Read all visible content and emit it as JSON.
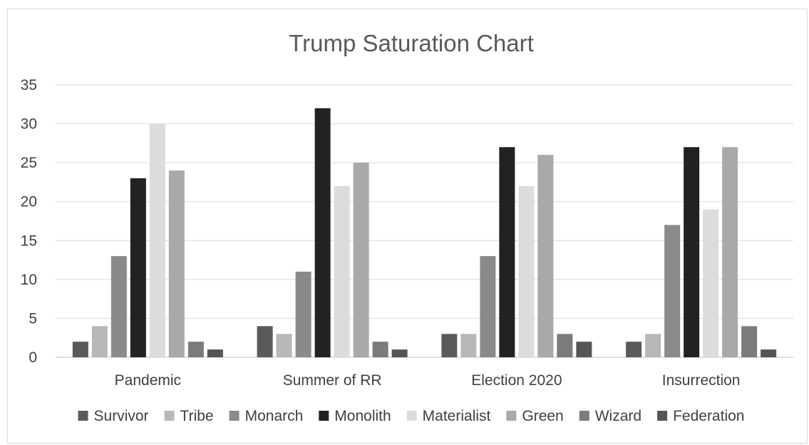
{
  "chart_data": {
    "type": "bar",
    "title": "Trump Saturation Chart",
    "xlabel": "",
    "ylabel": "",
    "ylim": [
      0,
      35
    ],
    "yticks": [
      0,
      5,
      10,
      15,
      20,
      25,
      30,
      35
    ],
    "grid": true,
    "legend_position": "bottom",
    "categories": [
      "Pandemic",
      "Summer of RR",
      "Election 2020",
      "Insurrection"
    ],
    "series": [
      {
        "name": "Survivor",
        "color": "#5a5a5a",
        "values": [
          2,
          4,
          3,
          2
        ]
      },
      {
        "name": "Tribe",
        "color": "#b8b8b8",
        "values": [
          4,
          3,
          3,
          3
        ]
      },
      {
        "name": "Monarch",
        "color": "#8a8a8a",
        "values": [
          13,
          11,
          13,
          17
        ]
      },
      {
        "name": "Monolith",
        "color": "#222222",
        "values": [
          23,
          32,
          27,
          27
        ]
      },
      {
        "name": "Materialist",
        "color": "#dcdcdc",
        "values": [
          30,
          22,
          22,
          19
        ]
      },
      {
        "name": "Green",
        "color": "#a9a9a9",
        "values": [
          24,
          25,
          26,
          27
        ]
      },
      {
        "name": "Wizard",
        "color": "#7b7b7b",
        "values": [
          2,
          2,
          3,
          4
        ]
      },
      {
        "name": "Federation",
        "color": "#555555",
        "values": [
          1,
          1,
          2,
          1
        ]
      }
    ]
  }
}
